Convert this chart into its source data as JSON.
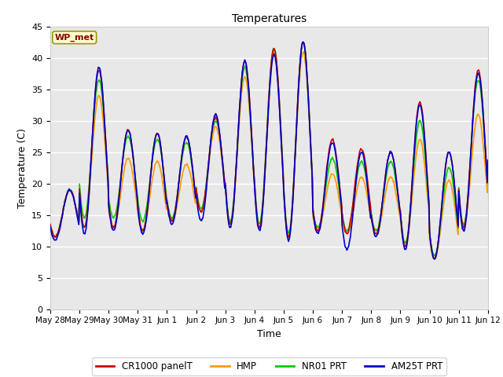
{
  "title": "Temperatures",
  "xlabel": "Time",
  "ylabel": "Temperature (C)",
  "ylim": [
    0,
    45
  ],
  "background_color": "#ffffff",
  "plot_bg_color": "#e8e8e8",
  "series": {
    "CR1000 panelT": {
      "color": "#cc0000",
      "lw": 1.2
    },
    "HMP": {
      "color": "#ff9900",
      "lw": 1.2
    },
    "NR01 PRT": {
      "color": "#00cc00",
      "lw": 1.2
    },
    "AM25T PRT": {
      "color": "#0000cc",
      "lw": 1.2
    }
  },
  "x_tick_labels": [
    "May 28",
    "May 29",
    "May 30",
    "May 31",
    "Jun 1",
    "Jun 2",
    "Jun 3",
    "Jun 4",
    "Jun 5",
    "Jun 6",
    "Jun 7",
    "Jun 8",
    "Jun 9",
    "Jun 10",
    "Jun 11",
    "Jun 12"
  ],
  "x_tick_positions": [
    0,
    24,
    48,
    72,
    96,
    120,
    144,
    168,
    192,
    216,
    240,
    264,
    288,
    312,
    336,
    360
  ],
  "y_ticks": [
    0,
    5,
    10,
    15,
    20,
    25,
    30,
    35,
    40,
    45
  ],
  "station_label": "WP_met",
  "station_label_color": "#8b0000",
  "station_box_color": "#ffffcc",
  "day_maxs_red": [
    19.0,
    38.0,
    28.5,
    28.0,
    27.5,
    30.5,
    39.5,
    41.5,
    42.5,
    27.0,
    25.5,
    25.0,
    33.0,
    25.0,
    38.0,
    38.0
  ],
  "day_mins_red": [
    11.5,
    13.0,
    13.0,
    12.5,
    14.0,
    15.5,
    13.5,
    13.0,
    11.5,
    12.5,
    12.0,
    12.0,
    10.0,
    8.0,
    13.0,
    19.0
  ],
  "day_maxs_org": [
    19.0,
    34.0,
    24.0,
    23.5,
    23.0,
    29.0,
    37.0,
    41.0,
    41.0,
    21.5,
    21.0,
    21.0,
    27.0,
    20.5,
    31.0,
    33.0
  ],
  "day_mins_org": [
    11.5,
    13.0,
    13.0,
    12.5,
    14.0,
    15.5,
    13.5,
    13.0,
    11.5,
    12.5,
    12.0,
    12.0,
    10.0,
    8.0,
    13.0,
    19.0
  ],
  "day_maxs_grn": [
    19.0,
    36.5,
    27.5,
    27.0,
    26.5,
    30.0,
    38.5,
    41.5,
    42.5,
    24.0,
    23.5,
    23.5,
    30.0,
    22.5,
    36.5,
    36.5
  ],
  "day_mins_grn": [
    11.5,
    14.5,
    14.5,
    14.0,
    14.5,
    16.0,
    14.0,
    13.5,
    12.0,
    13.0,
    12.5,
    12.5,
    10.5,
    8.5,
    13.5,
    19.0
  ],
  "day_maxs_blu": [
    19.0,
    38.5,
    28.5,
    28.0,
    27.5,
    31.0,
    39.5,
    40.5,
    42.5,
    26.5,
    25.0,
    25.0,
    32.5,
    25.0,
    37.5,
    37.5
  ],
  "day_mins_blu": [
    11.0,
    12.0,
    12.5,
    12.0,
    13.5,
    14.0,
    13.0,
    12.5,
    11.0,
    12.0,
    9.5,
    11.5,
    9.5,
    8.0,
    12.5,
    19.0
  ],
  "peak_hour": 14,
  "min_hour": 4,
  "n_points": 721,
  "total_hours": 360
}
